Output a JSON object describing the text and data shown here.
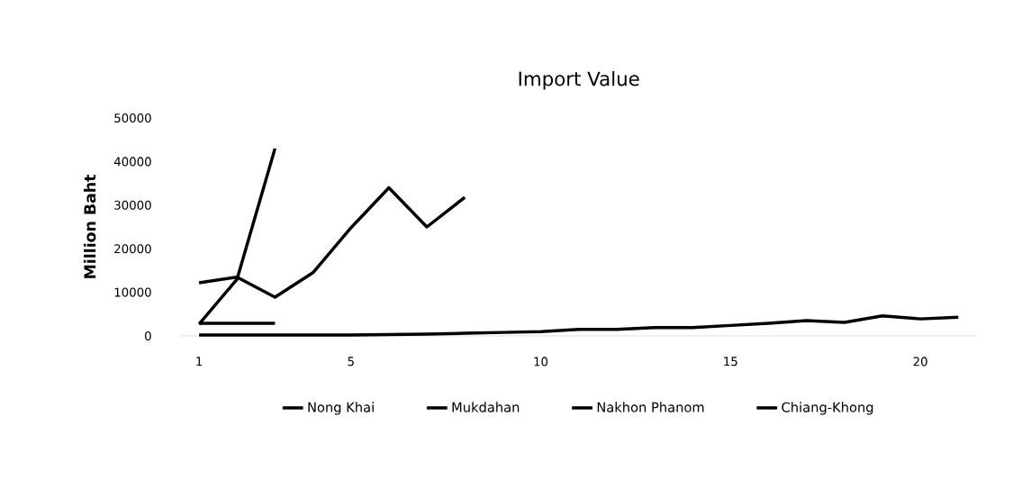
{
  "chart_data": {
    "type": "line",
    "title": "Import Value",
    "ylabel": "Million Baht",
    "x": [
      1,
      2,
      3,
      4,
      5,
      6,
      7,
      8,
      9,
      10,
      11,
      12,
      13,
      14,
      15,
      16,
      17,
      18,
      19,
      20,
      21
    ],
    "xlim": [
      0.5,
      21.5
    ],
    "xticks": [
      1,
      5,
      10,
      15,
      20
    ],
    "ylim": [
      0,
      50000
    ],
    "yticks": [
      0,
      10000,
      20000,
      30000,
      40000,
      50000
    ],
    "grid": false,
    "legend": "bottom",
    "marker": "none",
    "line_style": "solid",
    "series": [
      {
        "name": "Nong Khai",
        "color": "#000000",
        "x": [
          1,
          2,
          3
        ],
        "values": [
          2700,
          13000,
          43000
        ]
      },
      {
        "name": "Mukdahan",
        "color": "#000000",
        "x": [
          1,
          2,
          3,
          4,
          5,
          6,
          7,
          8
        ],
        "values": [
          12200,
          13500,
          8900,
          14500,
          24800,
          34000,
          25000,
          31800
        ]
      },
      {
        "name": "Nakhon Phanom",
        "color": "#000000",
        "x": [
          1,
          2,
          3
        ],
        "values": [
          2900,
          2900,
          2900
        ]
      },
      {
        "name": "Chiang-Khong",
        "color": "#000000",
        "values": [
          200,
          200,
          200,
          200,
          200,
          300,
          400,
          600,
          800,
          1000,
          1500,
          1500,
          1900,
          1900,
          2400,
          2900,
          3500,
          3100,
          4600,
          3900,
          4300
        ]
      }
    ]
  }
}
